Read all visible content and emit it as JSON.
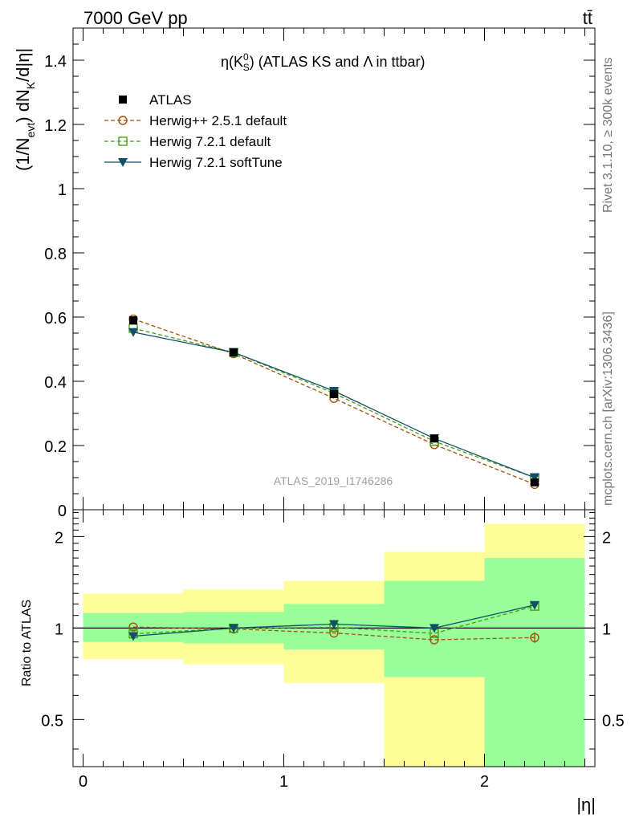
{
  "header": {
    "energy_label": "7000 GeV pp",
    "process_label": "tt̄"
  },
  "side_labels": {
    "rivet": "Rivet 3.1.10, ≥ 300k events",
    "mcplots": "mcplots.cern.ch [arXiv:1306.3436]"
  },
  "watermark": "ATLAS_2019_I1746286",
  "colors": {
    "atlas": "#000000",
    "herwigpp": "#a0520a",
    "herwig721": "#4a9a1a",
    "softtune": "#0f5068",
    "band_inner": "#99ff99",
    "band_outer": "#ffff99"
  },
  "chart_data": [
    {
      "type": "line",
      "panel": "main",
      "title": "η(K_S^0) (ATLAS KS and Λ in ttbar)",
      "title_parts": {
        "eta": "η(K",
        "sub": "S",
        "sup": "0",
        "rest": ") (ATLAS KS and Λ in ttbar)"
      },
      "ylabel": "(1/N_evt) dN_K/d|η|",
      "ylabel_parts": {
        "a": "(1/N",
        "evt": "evt",
        "b": ") dN",
        "k": "K",
        "c": "/d|η|"
      },
      "xlim": [
        -0.05,
        2.55
      ],
      "ylim": [
        0,
        1.5
      ],
      "yticks": [
        0,
        0.2,
        0.4,
        0.6,
        0.8,
        1,
        1.2,
        1.4
      ],
      "ytick_labels": [
        "0",
        "0.2",
        "0.4",
        "0.6",
        "0.8",
        "1",
        "1.2",
        "1.4"
      ],
      "x": [
        0.25,
        0.75,
        1.25,
        1.75,
        2.25
      ],
      "legend_position": "top-left",
      "series": [
        {
          "key": "atlas",
          "name": "ATLAS",
          "marker": "square-filled",
          "line": "none",
          "values": [
            0.59,
            0.49,
            0.36,
            0.222,
            0.085
          ]
        },
        {
          "key": "herwigpp",
          "name": "Herwig++ 2.5.1 default",
          "marker": "circle-open",
          "line": "dashed",
          "values": [
            0.594,
            0.486,
            0.347,
            0.203,
            0.079
          ]
        },
        {
          "key": "herwig721",
          "name": "Herwig 7.2.1 default",
          "marker": "square-open",
          "line": "dashed",
          "values": [
            0.565,
            0.49,
            0.363,
            0.213,
            0.1
          ]
        },
        {
          "key": "softtune",
          "name": "Herwig 7.2.1 softTune",
          "marker": "triangle-down",
          "line": "solid",
          "values": [
            0.553,
            0.49,
            0.37,
            0.222,
            0.1
          ]
        }
      ]
    },
    {
      "type": "line",
      "panel": "ratio",
      "ylabel": "Ratio to ATLAS",
      "xlabel": "|η|",
      "scale": "log",
      "ylim": [
        0.35,
        2.45
      ],
      "yticks": [
        0.5,
        1,
        2
      ],
      "ytick_labels": [
        "0.5",
        "1",
        "2"
      ],
      "xticks": [
        0,
        1,
        2
      ],
      "xtick_labels": [
        "0",
        "1",
        "2"
      ],
      "x": [
        0.25,
        0.75,
        1.25,
        1.75,
        2.25
      ],
      "bands": {
        "bin_edges": [
          0,
          0.5,
          1,
          1.5,
          2,
          2.5
        ],
        "inner_low": [
          0.9,
          0.89,
          0.85,
          0.69,
          0.35
        ],
        "inner_high": [
          1.12,
          1.13,
          1.2,
          1.43,
          1.7
        ],
        "outer_low": [
          0.79,
          0.76,
          0.66,
          0.35,
          0.35
        ],
        "outer_high": [
          1.3,
          1.34,
          1.43,
          1.78,
          2.2
        ]
      },
      "series": [
        {
          "key": "herwigpp",
          "name": "Herwig++ 2.5.1 default",
          "values": [
            1.007,
            0.993,
            0.963,
            0.915,
            0.93
          ]
        },
        {
          "key": "herwig721",
          "name": "Herwig 7.2.1 default",
          "values": [
            0.957,
            0.998,
            1.005,
            0.96,
            1.18
          ]
        },
        {
          "key": "softtune",
          "name": "Herwig 7.2.1 softTune",
          "values": [
            0.94,
            1.0,
            1.03,
            1.0,
            1.19
          ]
        }
      ]
    }
  ]
}
